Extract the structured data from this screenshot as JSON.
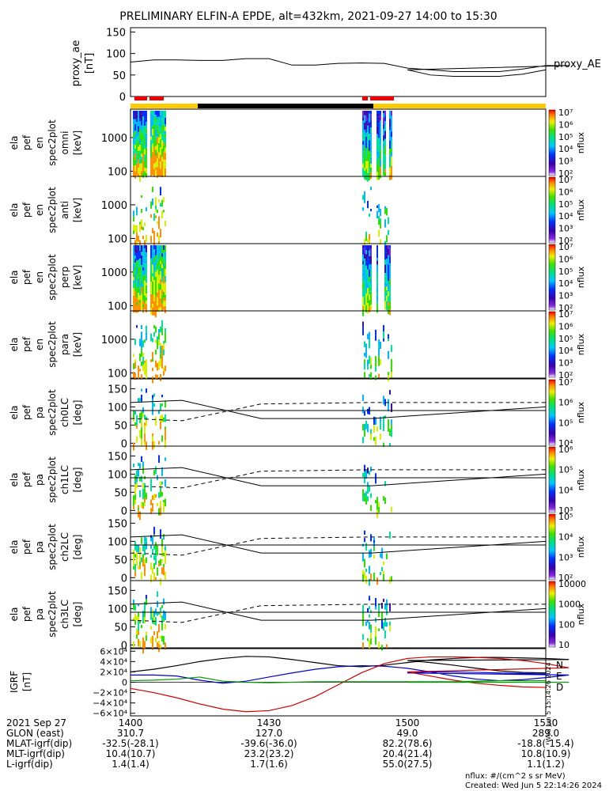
{
  "title": "PRELIMINARY ELFIN-A EPDE, alt=432km, 2021-09-27 14:00 to 15:30",
  "chart_data": [
    {
      "type": "line",
      "panel": "proxy_ae",
      "ylabel": [
        "proxy_ae",
        "[nT]"
      ],
      "yticks": [
        0,
        50,
        100,
        150
      ],
      "ylim": [
        0,
        160
      ],
      "series": [
        {
          "name": "proxy_AE",
          "x": [
            1400,
            1405,
            1410,
            1415,
            1420,
            1425,
            1430,
            1435,
            1440,
            1445,
            1450,
            1455,
            1460,
            1465,
            1470,
            1475,
            1480,
            1485,
            1490,
            1495,
            1500,
            1505,
            1510,
            1515,
            1520,
            1525,
            1530
          ],
          "y": [
            80,
            85,
            85,
            84,
            84,
            88,
            88,
            73,
            73,
            77,
            78,
            77,
            66,
            62,
            58,
            58,
            58,
            64,
            72,
            72,
            62,
            50,
            47,
            47,
            47,
            52,
            62
          ]
        }
      ]
    },
    {
      "type": "heatmap",
      "panel": "spectrogram",
      "rows": [
        {
          "ylabel": [
            "ela",
            "pef",
            "en",
            "spec2plot",
            "omni",
            "[keV]"
          ],
          "yticks": [
            100,
            1000
          ]
        },
        {
          "ylabel": [
            "ela",
            "pef",
            "en",
            "spec2plot",
            "anti",
            "[keV]"
          ],
          "yticks": [
            100,
            1000
          ]
        },
        {
          "ylabel": [
            "ela",
            "pef",
            "en",
            "spec2plot",
            "perp",
            "[keV]"
          ],
          "yticks": [
            100,
            1000
          ]
        },
        {
          "ylabel": [
            "ela",
            "pef",
            "en",
            "spec2plot",
            "para",
            "[keV]"
          ],
          "yticks": [
            100,
            1000
          ]
        },
        {
          "ylabel": [
            "ela",
            "pef",
            "pa",
            "spec2plot",
            "ch0LC",
            "[deg]"
          ],
          "yticks": [
            0,
            50,
            100,
            150
          ]
        },
        {
          "ylabel": [
            "ela",
            "pef",
            "pa",
            "spec2plot",
            "ch1LC",
            "[deg]"
          ],
          "yticks": [
            0,
            50,
            100,
            150
          ]
        },
        {
          "ylabel": [
            "ela",
            "pef",
            "pa",
            "spec2plot",
            "ch2LC",
            "[deg]"
          ],
          "yticks": [
            0,
            50,
            100,
            150
          ]
        },
        {
          "ylabel": [
            "ela",
            "pef",
            "pa",
            "spec2plot",
            "ch3LC",
            "[deg]"
          ],
          "yticks": [
            0,
            50,
            100,
            150
          ]
        }
      ],
      "colorbars": [
        {
          "label": "nflux",
          "ticks": [
            "10²",
            "10³",
            "10⁴",
            "10⁵",
            "10⁶",
            "10⁷"
          ]
        },
        {
          "label": "nflux",
          "ticks": [
            "10²",
            "10³",
            "10⁴",
            "10⁵",
            "10⁶",
            "10⁷"
          ]
        },
        {
          "label": "nflux",
          "ticks": [
            "10²",
            "10³",
            "10⁴",
            "10⁵",
            "10⁶",
            "10⁷"
          ]
        },
        {
          "label": "nflux",
          "ticks": [
            "10²",
            "10³",
            "10⁴",
            "10⁵",
            "10⁶",
            "10⁷"
          ]
        },
        {
          "label": "nflux",
          "ticks": [
            "10⁴",
            "10⁵",
            "10⁶",
            "10⁷"
          ]
        },
        {
          "label": "nflux",
          "ticks": [
            "10³",
            "10⁴",
            "10⁵",
            "10⁶"
          ]
        },
        {
          "label": "nflux",
          "ticks": [
            "10²",
            "10³",
            "10⁴",
            "10⁵"
          ]
        },
        {
          "label": "nflux",
          "ticks": [
            "10",
            "100",
            "1000",
            "10000"
          ]
        }
      ]
    },
    {
      "type": "line",
      "panel": "igrf",
      "ylabel": [
        "IGRF",
        "[nT]"
      ],
      "yticks": [
        "6×10⁴",
        "4×10⁴",
        "2×10⁴",
        "0",
        "−2×10⁴",
        "−4×10⁴",
        "−6×10⁴"
      ],
      "ylim": [
        -65000,
        65000
      ],
      "legend": [
        "N",
        "E",
        "D"
      ],
      "series": [
        {
          "name": "N",
          "color": "#000000",
          "x": [
            1400,
            1405,
            1410,
            1415,
            1420,
            1425,
            1430,
            1435,
            1440,
            1445,
            1450,
            1455,
            1460,
            1465,
            1470,
            1475,
            1480,
            1485,
            1490,
            1495,
            1500,
            1505,
            1510,
            1515,
            1520,
            1525,
            1530
          ],
          "y": [
            20000,
            25000,
            32000,
            40000,
            46000,
            50000,
            49000,
            44000,
            38000,
            32000,
            30000,
            33000,
            38000,
            43000,
            46000,
            48000,
            48000,
            47000,
            46000,
            44000,
            42000,
            38000,
            33000,
            27000,
            22000,
            19000,
            18000
          ]
        },
        {
          "name": "E",
          "color": "#0000cc",
          "x": [
            1400,
            1405,
            1410,
            1415,
            1420,
            1425,
            1430,
            1435,
            1440,
            1445,
            1450,
            1455,
            1460,
            1465,
            1470,
            1475,
            1480,
            1485,
            1490,
            1495,
            1500,
            1505,
            1510,
            1515,
            1520,
            1525,
            1530
          ],
          "y": [
            14000,
            14000,
            12000,
            4000,
            -2000,
            2000,
            10000,
            18000,
            25000,
            30000,
            32000,
            31000,
            27000,
            20000,
            12000,
            6000,
            3000,
            5000,
            9000,
            14000,
            18000,
            20000,
            20000,
            19000,
            18000,
            17000,
            16000
          ]
        },
        {
          "name": "D",
          "color": "#cc0000",
          "x": [
            1400,
            1405,
            1410,
            1415,
            1420,
            1425,
            1430,
            1435,
            1440,
            1445,
            1450,
            1455,
            1460,
            1465,
            1470,
            1475,
            1480,
            1485,
            1490,
            1495,
            1500,
            1505,
            1510,
            1515,
            1520,
            1525,
            1530
          ],
          "y": [
            -12000,
            -20000,
            -30000,
            -42000,
            -52000,
            -57000,
            -55000,
            -45000,
            -28000,
            -5000,
            18000,
            36000,
            46000,
            49000,
            49000,
            48000,
            46000,
            42000,
            36000,
            28000,
            20000,
            12000,
            4000,
            -2000,
            -6000,
            -9000,
            -10000
          ]
        },
        {
          "name": "",
          "color": "#009900",
          "x": [
            1400,
            1405,
            1410,
            1415,
            1420,
            1425,
            1430,
            1435,
            1440,
            1445,
            1450,
            1455,
            1460,
            1465,
            1470,
            1475,
            1480,
            1485,
            1490,
            1495,
            1500,
            1505,
            1510,
            1515,
            1520,
            1525,
            1530
          ],
          "y": [
            3000,
            4000,
            6000,
            10000,
            2000,
            0,
            -1000,
            0,
            1000,
            1000,
            1000,
            1000,
            1000,
            1000,
            1000,
            1000,
            0,
            0,
            0,
            0,
            0,
            0,
            1000,
            2000,
            3000,
            3000,
            3000
          ]
        }
      ]
    }
  ],
  "x_axis": {
    "rows": [
      {
        "label": "2021 Sep 27",
        "values": [
          "1400",
          "1430",
          "1500",
          "1530"
        ]
      },
      {
        "label": "GLON (east)",
        "values": [
          "310.7",
          "127.0",
          "49.0",
          "289.0"
        ]
      },
      {
        "label": "MLAT-igrf(dip)",
        "values": [
          "-32.5(-28.1)",
          "-39.6(-36.0)",
          "82.2(78.6)",
          "-18.8(-15.4)"
        ]
      },
      {
        "label": "MLT-igrf(dip)",
        "values": [
          "10.4(10.7)",
          "23.2(23.2)",
          "20.4(21.4)",
          "10.8(10.9)"
        ]
      },
      {
        "label": "L-igrf(dip)",
        "values": [
          "1.4(1.4)",
          "1.7(1.6)",
          "55.0(27.5)",
          "1.1(1.2)"
        ]
      }
    ]
  },
  "footer": {
    "units": "nflux: #/(cm^2 s sr MeV)",
    "created": "Created: Wed Jun  5 22:14:26 2024",
    "side_stamp": "Wed Jun  5 15:14:26 2024"
  }
}
